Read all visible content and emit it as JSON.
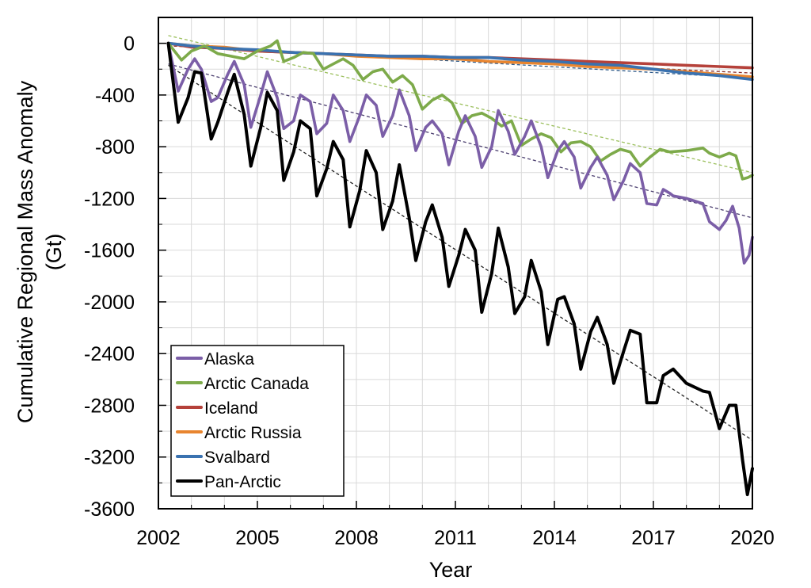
{
  "chart_data": {
    "type": "line",
    "title": "",
    "xlabel": "Year",
    "ylabel_lines": [
      "Cumulative Regional Mass Anomaly",
      "(Gt)"
    ],
    "xlim": [
      2002,
      2020
    ],
    "ylim": [
      -3600,
      200
    ],
    "x_ticks": [
      2002,
      2005,
      2008,
      2011,
      2014,
      2017,
      2020
    ],
    "x_tick_labels": [
      "2002",
      "2005",
      "2008",
      "2011",
      "2014",
      "2017",
      "2020"
    ],
    "y_ticks": [
      0,
      -400,
      -800,
      -1200,
      -1600,
      -2000,
      -2400,
      -2800,
      -3200,
      -3600
    ],
    "y_tick_labels": [
      "0",
      "-400",
      "-800",
      "-1200",
      "-1600",
      "-2000",
      "-2400",
      "-2800",
      "-3200",
      "-3600"
    ],
    "grid": true,
    "legend_position": "bottom-left",
    "series": [
      {
        "name": "Alaska",
        "color": "#7b5ea7",
        "x": [
          2002.3,
          2002.6,
          2002.9,
          2003.1,
          2003.3,
          2003.6,
          2003.8,
          2004.1,
          2004.3,
          2004.6,
          2004.8,
          2005.1,
          2005.3,
          2005.6,
          2005.8,
          2006.1,
          2006.3,
          2006.6,
          2006.8,
          2007.1,
          2007.3,
          2007.6,
          2007.8,
          2008.1,
          2008.3,
          2008.6,
          2008.8,
          2009.1,
          2009.3,
          2009.6,
          2009.8,
          2010.1,
          2010.3,
          2010.6,
          2010.8,
          2011.1,
          2011.3,
          2011.6,
          2011.8,
          2012.1,
          2012.3,
          2012.6,
          2012.8,
          2013.1,
          2013.3,
          2013.6,
          2013.8,
          2014.1,
          2014.3,
          2014.6,
          2014.8,
          2015.1,
          2015.3,
          2015.6,
          2015.8,
          2016.1,
          2016.3,
          2016.6,
          2016.8,
          2017.1,
          2017.3,
          2017.5,
          2017.6,
          2018.0,
          2018.5,
          2018.7,
          2019.0,
          2019.2,
          2019.4,
          2019.6,
          2019.75,
          2019.9,
          2020.0
        ],
        "y": [
          0,
          -370,
          -200,
          -120,
          -200,
          -450,
          -420,
          -240,
          -140,
          -320,
          -650,
          -400,
          -220,
          -420,
          -660,
          -600,
          -400,
          -450,
          -700,
          -620,
          -400,
          -520,
          -760,
          -560,
          -400,
          -480,
          -720,
          -560,
          -360,
          -560,
          -830,
          -650,
          -600,
          -700,
          -940,
          -680,
          -560,
          -720,
          -960,
          -800,
          -520,
          -680,
          -860,
          -720,
          -600,
          -800,
          -1040,
          -830,
          -760,
          -880,
          -1120,
          -960,
          -880,
          -1020,
          -1210,
          -1060,
          -930,
          -1000,
          -1240,
          -1250,
          -1130,
          -1160,
          -1180,
          -1200,
          -1240,
          -1380,
          -1440,
          -1370,
          -1260,
          -1430,
          -1700,
          -1640,
          -1500
        ]
      },
      {
        "name": "Arctic Canada",
        "color": "#7daa4a",
        "x": [
          2002.3,
          2002.7,
          2003.0,
          2003.4,
          2003.8,
          2004.2,
          2004.6,
          2005.0,
          2005.4,
          2005.6,
          2005.8,
          2006.1,
          2006.4,
          2006.7,
          2007.0,
          2007.3,
          2007.6,
          2007.9,
          2008.2,
          2008.5,
          2008.8,
          2009.1,
          2009.4,
          2009.7,
          2010.0,
          2010.3,
          2010.6,
          2010.9,
          2011.2,
          2011.5,
          2011.8,
          2012.1,
          2012.4,
          2012.7,
          2013.0,
          2013.3,
          2013.6,
          2013.9,
          2014.2,
          2014.5,
          2014.8,
          2015.1,
          2015.4,
          2015.7,
          2016.0,
          2016.3,
          2016.6,
          2016.9,
          2017.2,
          2017.5,
          2018.0,
          2018.5,
          2018.7,
          2019.0,
          2019.3,
          2019.5,
          2019.7,
          2019.85,
          2020.0
        ],
        "y": [
          0,
          -130,
          -60,
          -20,
          -80,
          -100,
          -120,
          -60,
          -20,
          20,
          -140,
          -110,
          -70,
          -80,
          -200,
          -160,
          -120,
          -170,
          -280,
          -220,
          -200,
          -300,
          -250,
          -320,
          -510,
          -440,
          -400,
          -460,
          -620,
          -560,
          -540,
          -580,
          -640,
          -600,
          -790,
          -740,
          -700,
          -730,
          -840,
          -770,
          -760,
          -800,
          -910,
          -860,
          -820,
          -840,
          -950,
          -880,
          -820,
          -840,
          -830,
          -810,
          -850,
          -880,
          -850,
          -870,
          -1050,
          -1040,
          -1020
        ]
      },
      {
        "name": "Iceland",
        "color": "#b5413a",
        "x": [
          2002.3,
          2003.0,
          2004.0,
          2005.0,
          2006.0,
          2007.0,
          2008.0,
          2009.0,
          2010.0,
          2011.0,
          2012.0,
          2013.0,
          2014.0,
          2015.0,
          2016.0,
          2017.0,
          2018.0,
          2019.0,
          2020.0
        ],
        "y": [
          0,
          -30,
          -40,
          -60,
          -70,
          -80,
          -90,
          -100,
          -100,
          -110,
          -110,
          -120,
          -130,
          -140,
          -150,
          -160,
          -170,
          -180,
          -190
        ]
      },
      {
        "name": "Arctic Russia",
        "color": "#e8852f",
        "x": [
          2002.3,
          2003.0,
          2004.0,
          2005.0,
          2006.0,
          2007.0,
          2008.0,
          2009.0,
          2010.0,
          2011.0,
          2012.0,
          2013.0,
          2014.0,
          2015.0,
          2016.0,
          2017.0,
          2018.0,
          2019.0,
          2020.0
        ],
        "y": [
          0,
          -20,
          -30,
          -60,
          -70,
          -80,
          -100,
          -110,
          -120,
          -120,
          -140,
          -150,
          -160,
          -180,
          -190,
          -200,
          -220,
          -240,
          -260
        ]
      },
      {
        "name": "Svalbard",
        "color": "#3a72b0",
        "x": [
          2002.3,
          2003.0,
          2004.0,
          2005.0,
          2006.0,
          2007.0,
          2008.0,
          2009.0,
          2010.0,
          2011.0,
          2012.0,
          2013.0,
          2014.0,
          2015.0,
          2016.0,
          2017.0,
          2018.0,
          2019.0,
          2020.0
        ],
        "y": [
          0,
          -20,
          -40,
          -50,
          -70,
          -80,
          -90,
          -100,
          -100,
          -110,
          -110,
          -130,
          -140,
          -160,
          -170,
          -200,
          -230,
          -250,
          -280
        ]
      },
      {
        "name": "Pan-Arctic",
        "color": "#000000",
        "x": [
          2002.3,
          2002.6,
          2002.9,
          2003.1,
          2003.3,
          2003.6,
          2003.8,
          2004.1,
          2004.3,
          2004.6,
          2004.8,
          2005.1,
          2005.3,
          2005.6,
          2005.8,
          2006.1,
          2006.3,
          2006.6,
          2006.8,
          2007.1,
          2007.3,
          2007.6,
          2007.8,
          2008.1,
          2008.3,
          2008.6,
          2008.8,
          2009.1,
          2009.3,
          2009.6,
          2009.8,
          2010.1,
          2010.3,
          2010.6,
          2010.8,
          2011.1,
          2011.3,
          2011.6,
          2011.8,
          2012.1,
          2012.3,
          2012.6,
          2012.8,
          2013.1,
          2013.3,
          2013.6,
          2013.8,
          2014.1,
          2014.3,
          2014.6,
          2014.8,
          2015.1,
          2015.3,
          2015.6,
          2015.8,
          2016.1,
          2016.3,
          2016.6,
          2016.8,
          2017.1,
          2017.3,
          2017.6,
          2018.0,
          2018.5,
          2018.7,
          2019.0,
          2019.3,
          2019.5,
          2019.7,
          2019.85,
          2020.0
        ],
        "y": [
          0,
          -610,
          -420,
          -220,
          -230,
          -740,
          -610,
          -380,
          -240,
          -550,
          -950,
          -650,
          -380,
          -520,
          -1060,
          -840,
          -600,
          -660,
          -1180,
          -970,
          -760,
          -900,
          -1420,
          -1140,
          -830,
          -1000,
          -1440,
          -1220,
          -940,
          -1350,
          -1680,
          -1380,
          -1250,
          -1500,
          -1880,
          -1640,
          -1440,
          -1600,
          -2080,
          -1780,
          -1430,
          -1730,
          -2090,
          -1960,
          -1680,
          -1920,
          -2330,
          -1980,
          -1960,
          -2170,
          -2520,
          -2230,
          -2120,
          -2330,
          -2630,
          -2380,
          -2220,
          -2250,
          -2780,
          -2780,
          -2570,
          -2520,
          -2630,
          -2690,
          -2700,
          -2980,
          -2800,
          -2800,
          -3220,
          -3490,
          -3290
        ]
      }
    ],
    "trend_lines": [
      {
        "series": "Alaska",
        "color": "#4a3d6e",
        "x": [
          2002.3,
          2020.0
        ],
        "y": [
          -160,
          -1350
        ]
      },
      {
        "series": "Arctic Canada",
        "color": "#9bbf5c",
        "x": [
          2002.3,
          2020.0
        ],
        "y": [
          60,
          -1000
        ]
      },
      {
        "series": "Pan-Arctic",
        "color": "#222222",
        "x": [
          2002.3,
          2020.0
        ],
        "y": [
          -170,
          -3070
        ]
      },
      {
        "series": "Iceland",
        "color": "#8a2e2a",
        "x": [
          2002.3,
          2020.0
        ],
        "y": [
          -20,
          -230
        ]
      },
      {
        "series": "Svalbard",
        "color": "#2d5a8a",
        "x": [
          2002.3,
          2020.0
        ],
        "y": [
          -10,
          -270
        ]
      }
    ]
  }
}
